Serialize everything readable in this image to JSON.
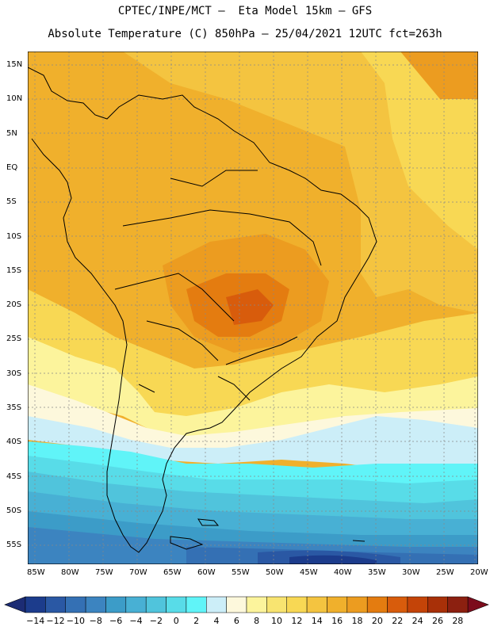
{
  "header": {
    "line1": "CPTEC/INPE/MCT –  Eta Model 15km – GFS",
    "line2": "Absolute Temperature (C) 850hPa – 25/04/2021 12UTC fct=263h"
  },
  "map": {
    "lat_labels": [
      "15N",
      "10N",
      "5N",
      "EQ",
      "5S",
      "10S",
      "15S",
      "20S",
      "25S",
      "30S",
      "35S",
      "40S",
      "45S",
      "50S",
      "55S"
    ],
    "lon_labels": [
      "85W",
      "80W",
      "75W",
      "70W",
      "65W",
      "60W",
      "55W",
      "50W",
      "45W",
      "40W",
      "35W",
      "30W",
      "25W",
      "20W"
    ]
  },
  "colorbar": {
    "labels": [
      "-14",
      "-12",
      "-10",
      "-8",
      "-6",
      "-4",
      "-2",
      "0",
      "2",
      "4",
      "6",
      "8",
      "10",
      "12",
      "14",
      "16",
      "18",
      "20",
      "22",
      "24",
      "26",
      "28"
    ],
    "colors": [
      "#1c3c8c",
      "#2a58a4",
      "#3470b4",
      "#3c84c0",
      "#3c9cc8",
      "#48b0d4",
      "#50c4dc",
      "#58dce8",
      "#60f4f8",
      "#cceef8",
      "#fdf8dc",
      "#fcf49c",
      "#f8e470",
      "#f8d854",
      "#f4c440",
      "#f0b02c",
      "#ec9c20",
      "#e47c10",
      "#d85c0c",
      "#c44408",
      "#a83008",
      "#8c2010"
    ],
    "low_arrow_color": "#1c2c74",
    "high_arrow_color": "#7c0c1c"
  }
}
